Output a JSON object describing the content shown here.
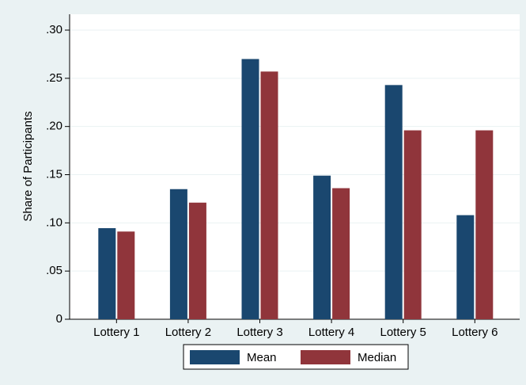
{
  "chart_data": {
    "type": "bar",
    "categories": [
      "Lottery 1",
      "Lottery 2",
      "Lottery 3",
      "Lottery 4",
      "Lottery 5",
      "Lottery 6"
    ],
    "series": [
      {
        "name": "Mean",
        "color": "#1a476f",
        "values": [
          0.0945,
          0.135,
          0.27,
          0.149,
          0.243,
          0.108
        ]
      },
      {
        "name": "Median",
        "color": "#90353b",
        "values": [
          0.091,
          0.121,
          0.257,
          0.136,
          0.196,
          0.196
        ]
      }
    ],
    "y_label": "Share of Participants",
    "ylim": [
      0,
      0.3
    ],
    "yticks": [
      0,
      {
        "value": 0.05,
        "label": ".05"
      },
      {
        "value": 0.1,
        "label": ".10"
      },
      {
        "value": 0.15,
        "label": ".15"
      },
      {
        "value": 0.2,
        "label": ".20"
      },
      {
        "value": 0.25,
        "label": ".25"
      },
      {
        "value": 0.3,
        "label": ".30"
      }
    ],
    "grid": true
  }
}
